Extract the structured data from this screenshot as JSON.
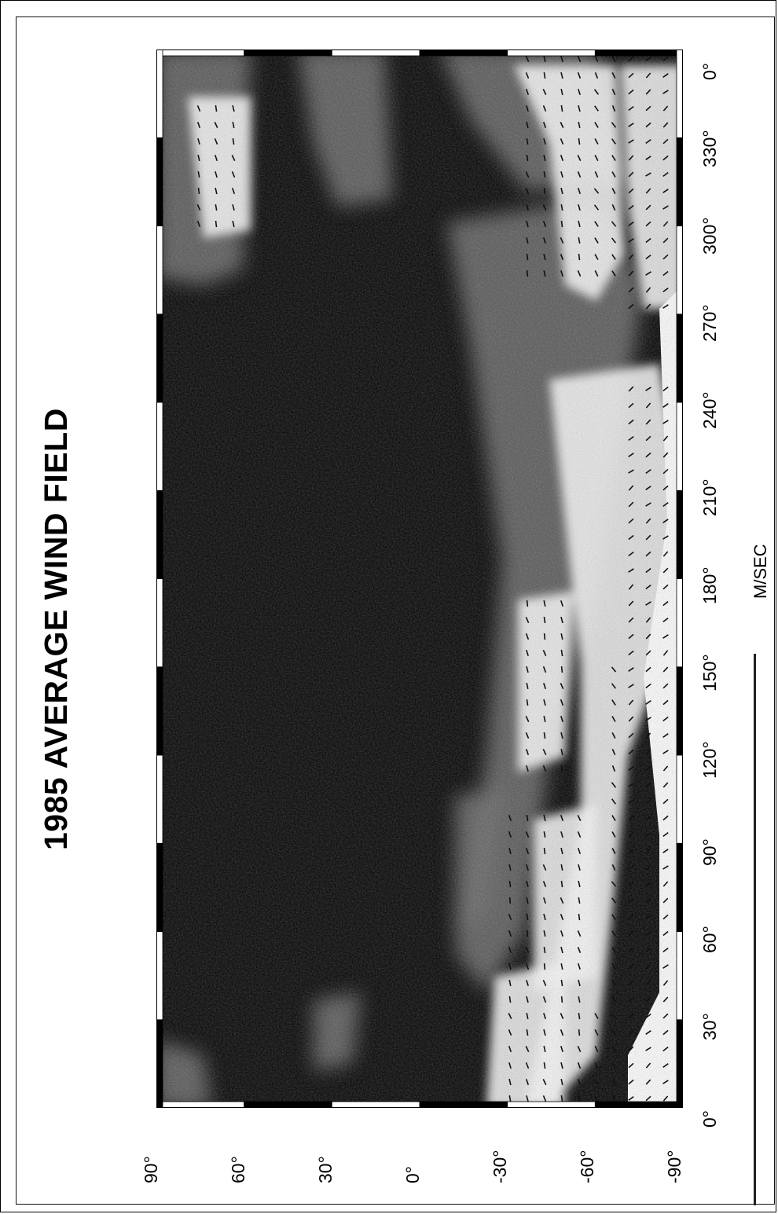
{
  "figure": {
    "title": "1985 AVERAGE WIND FIELD",
    "units_label": "M/SEC"
  },
  "map": {
    "projection": "equirectangular",
    "orientation": "rotated 90° counter-clockwise",
    "longitude_ticks": [
      "0°",
      "30°",
      "60°",
      "90°",
      "120°",
      "150°",
      "180°",
      "210°",
      "240°",
      "270°",
      "300°",
      "330°",
      "0°"
    ],
    "latitude_ticks": [
      "90°",
      "60°",
      "30°",
      "0°",
      "-30°",
      "-60°",
      "-90°"
    ],
    "shading": "grayscale wind speed",
    "vectors": "wind direction arrows",
    "colors": {
      "background": "#ffffff",
      "field_dark": "#050505",
      "field_light": "#f2f2f2"
    }
  }
}
